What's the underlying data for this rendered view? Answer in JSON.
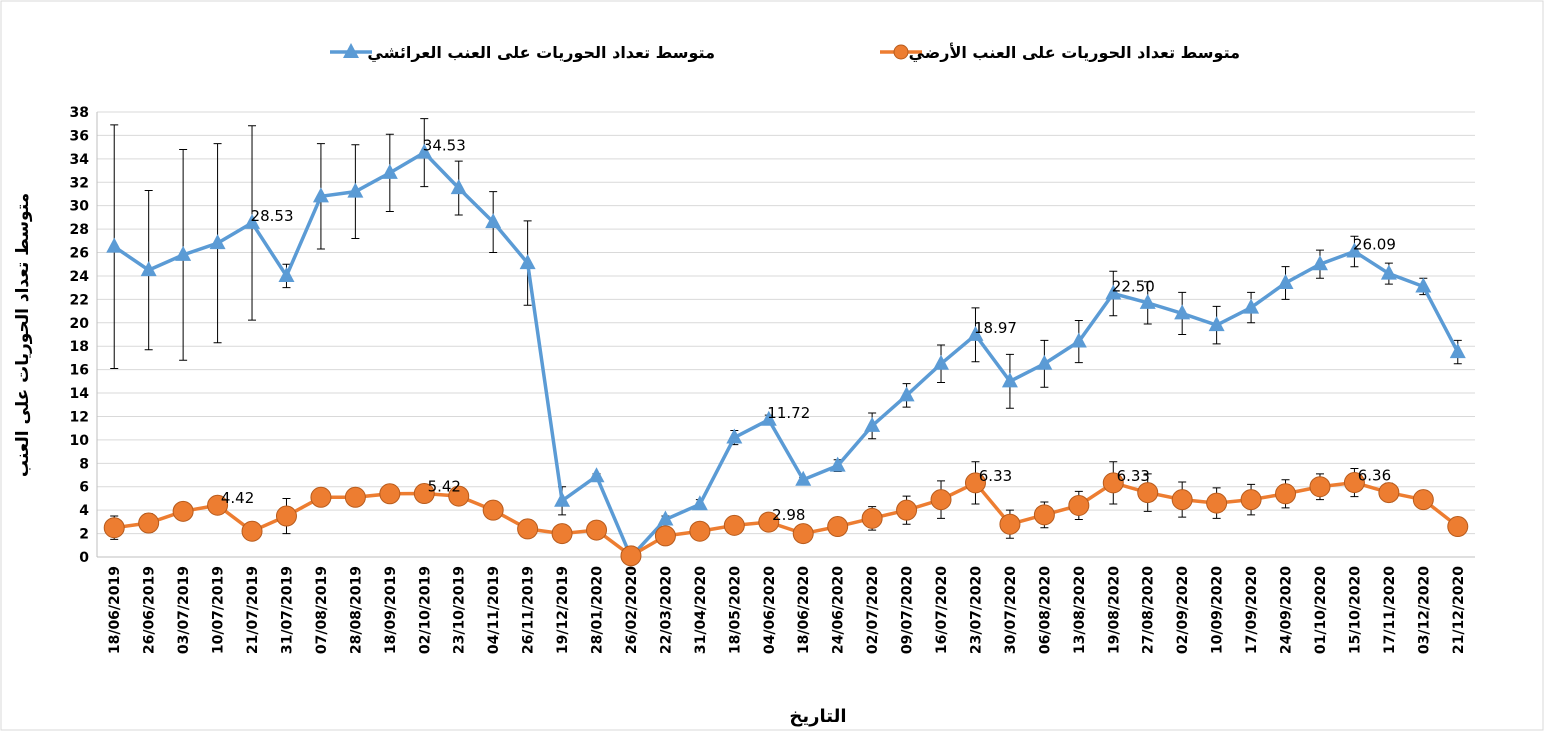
{
  "chart_data": {
    "type": "line",
    "title": null,
    "x_label": "التاريخ",
    "y_label": "متوسط تعداد الحوريات على العنب",
    "legend": "top",
    "grid": true,
    "categories": [
      "18/06/2019",
      "26/06/2019",
      "03/07/2019",
      "10/07/2019",
      "21/07/2019",
      "31/07/2019",
      "07/08/2019",
      "28/08/2019",
      "18/09/2019",
      "02/10/2019",
      "23/10/2019",
      "04/11/2019",
      "26/11/2019",
      "19/12/2019",
      "28/01/2020",
      "26/02/2020",
      "22/03/2020",
      "31/04/2020",
      "18/05/2020",
      "04/06/2020",
      "18/06/2020",
      "24/06/2020",
      "02/07/2020",
      "09/07/2020",
      "16/07/2020",
      "23/07/2020",
      "30/07/2020",
      "06/08/2020",
      "13/08/2020",
      "19/08/2020",
      "27/08/2020",
      "02/09/2020",
      "10/09/2020",
      "17/09/2020",
      "24/09/2020",
      "01/10/2020",
      "15/10/2020",
      "17/11/2020",
      "03/12/2020",
      "21/12/2020"
    ],
    "ylim": [
      0,
      38
    ],
    "yticks": [
      0,
      2,
      4,
      6,
      8,
      10,
      12,
      14,
      16,
      18,
      20,
      22,
      24,
      26,
      28,
      30,
      32,
      34,
      36,
      38
    ],
    "series": [
      {
        "name": "متوسط تعداد الحوريات على العنب العرائشي",
        "color": "#5b9bd5",
        "marker": "triangle",
        "values": [
          26.5,
          24.5,
          25.8,
          26.8,
          28.53,
          24,
          30.8,
          31.2,
          32.8,
          34.53,
          31.5,
          28.6,
          25.1,
          4.8,
          6.9,
          0,
          3.2,
          4.5,
          10.2,
          11.72,
          6.6,
          7.8,
          11.2,
          13.8,
          16.5,
          18.97,
          15,
          16.5,
          18.4,
          22.5,
          21.7,
          20.8,
          19.8,
          21.3,
          23.4,
          25,
          26.09,
          24.2,
          23.1,
          17.5
        ],
        "errors": [
          10.4,
          6.8,
          9,
          8.5,
          8.3,
          1,
          4.5,
          4,
          3.3,
          2.9,
          2.3,
          2.6,
          3.6,
          1.2,
          0.2,
          0,
          0.3,
          0.4,
          0.6,
          0.4,
          0.2,
          0.5,
          1.1,
          1,
          1.6,
          2.3,
          2.3,
          2,
          1.8,
          1.9,
          1.8,
          1.8,
          1.6,
          1.3,
          1.4,
          1.2,
          1.3,
          0.9,
          0.7,
          1
        ],
        "value_labels": [
          null,
          null,
          null,
          null,
          "28.53",
          null,
          null,
          null,
          null,
          "34.53",
          null,
          null,
          null,
          null,
          null,
          null,
          null,
          null,
          null,
          "11.72",
          null,
          null,
          null,
          null,
          null,
          "18.97",
          null,
          null,
          null,
          "22.50",
          null,
          null,
          null,
          null,
          null,
          null,
          "26.09",
          null,
          null,
          null
        ]
      },
      {
        "name": "متوسط تعداد الحوريات على العنب الأرضي",
        "color": "#ed7d31",
        "marker": "circle",
        "values": [
          2.5,
          2.9,
          3.9,
          4.42,
          2.2,
          3.5,
          5.1,
          5.1,
          5.4,
          5.42,
          5.2,
          4,
          2.4,
          2,
          2.3,
          0.1,
          1.8,
          2.2,
          2.7,
          2.98,
          2,
          2.6,
          3.3,
          4,
          4.9,
          6.33,
          2.8,
          3.6,
          4.4,
          6.33,
          5.5,
          4.9,
          4.6,
          4.9,
          5.4,
          6,
          6.36,
          5.5,
          4.9,
          2.6
        ],
        "errors": [
          1,
          0.8,
          0.5,
          0.5,
          0.4,
          1.5,
          0.5,
          0.5,
          0.5,
          0.5,
          0.5,
          0.5,
          0.4,
          0.4,
          0.4,
          0.1,
          0.4,
          0.4,
          0.5,
          0.5,
          0.4,
          0.5,
          1,
          1.2,
          1.6,
          1.8,
          1.2,
          1.1,
          1.2,
          1.8,
          1.6,
          1.5,
          1.3,
          1.3,
          1.2,
          1.1,
          1.2,
          0.8,
          0.4,
          0.3
        ],
        "value_labels": [
          null,
          null,
          null,
          "4.42",
          null,
          null,
          null,
          null,
          null,
          "5.42",
          null,
          null,
          null,
          null,
          null,
          null,
          null,
          null,
          null,
          "2.98",
          null,
          null,
          null,
          null,
          null,
          "6.33",
          null,
          null,
          null,
          "6.33",
          null,
          null,
          null,
          null,
          null,
          null,
          "6.36",
          null,
          null,
          null
        ]
      }
    ]
  }
}
